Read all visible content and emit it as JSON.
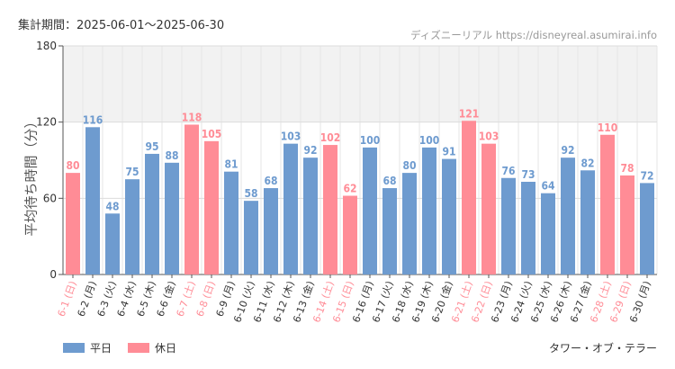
{
  "header": {
    "period_label": "集計期間：2025-06-01～2025-06-30",
    "source": "ディズニーリアル https://disneyreal.asumirai.info"
  },
  "legend": {
    "weekday": "平日",
    "holiday": "休日"
  },
  "attraction": "タワー・オブ・テラー",
  "colors": {
    "weekday": "#6e9bcf",
    "holiday": "#ff8c96",
    "band": "#f2f2f2",
    "axis": "#555555"
  },
  "chart_data": {
    "type": "bar",
    "title": "",
    "ylabel": "平均待ち時間（分）",
    "xlabel": "",
    "ylim": [
      0,
      180
    ],
    "yticks": [
      0,
      60,
      120,
      180
    ],
    "band": [
      120,
      180
    ],
    "categories": [
      "6-1 (日)",
      "6-2 (月)",
      "6-3 (火)",
      "6-4 (水)",
      "6-5 (木)",
      "6-6 (金)",
      "6-7 (土)",
      "6-8 (日)",
      "6-9 (月)",
      "6-10 (火)",
      "6-11 (水)",
      "6-12 (木)",
      "6-13 (金)",
      "6-14 (土)",
      "6-15 (日)",
      "6-16 (月)",
      "6-17 (火)",
      "6-18 (水)",
      "6-19 (木)",
      "6-20 (金)",
      "6-21 (土)",
      "6-22 (日)",
      "6-23 (月)",
      "6-24 (火)",
      "6-25 (水)",
      "6-26 (木)",
      "6-27 (金)",
      "6-28 (土)",
      "6-29 (日)",
      "6-30 (月)"
    ],
    "values": [
      80,
      116,
      48,
      75,
      95,
      88,
      118,
      105,
      81,
      58,
      68,
      103,
      92,
      102,
      62,
      100,
      68,
      80,
      100,
      91,
      121,
      103,
      76,
      73,
      64,
      92,
      82,
      110,
      78,
      72
    ],
    "day_type": [
      "holiday",
      "weekday",
      "weekday",
      "weekday",
      "weekday",
      "weekday",
      "holiday",
      "holiday",
      "weekday",
      "weekday",
      "weekday",
      "weekday",
      "weekday",
      "holiday",
      "holiday",
      "weekday",
      "weekday",
      "weekday",
      "weekday",
      "weekday",
      "holiday",
      "holiday",
      "weekday",
      "weekday",
      "weekday",
      "weekday",
      "weekday",
      "holiday",
      "holiday",
      "weekday"
    ]
  }
}
